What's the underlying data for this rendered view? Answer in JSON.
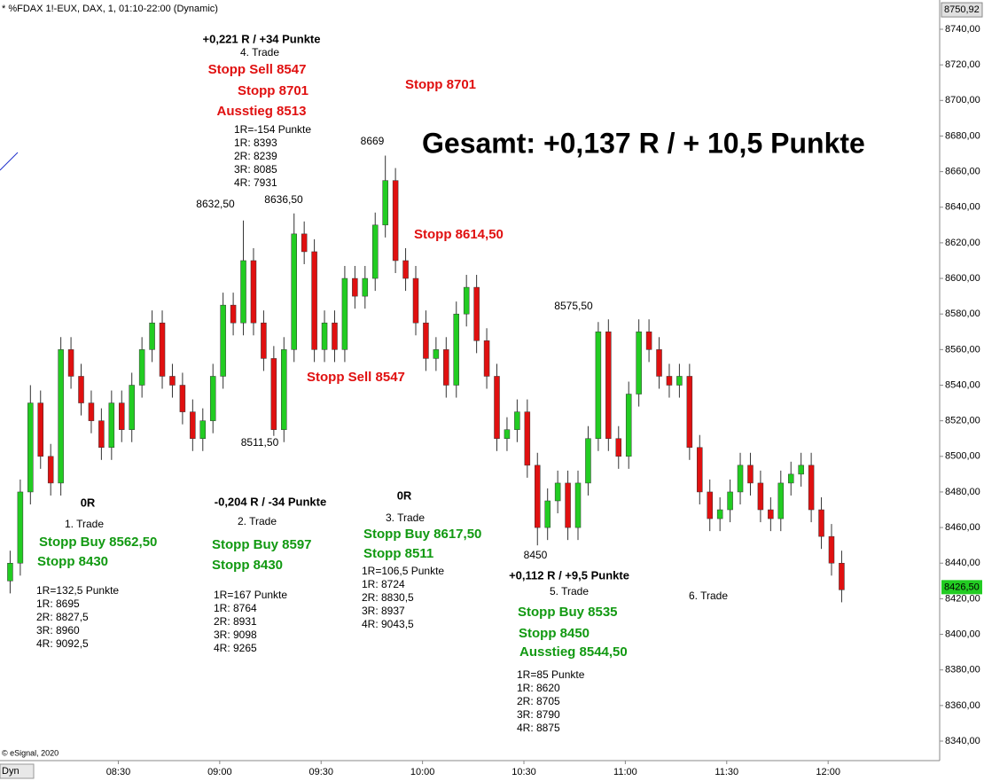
{
  "chart_data": {
    "type": "candlestick",
    "title": "* %FDAX 1!-EUX, DAX, 1, 01:10-22:00 (Dynamic)",
    "footer": "© eSignal, 2020",
    "mode_label": "Dyn",
    "up_color": "#22cc22",
    "down_color": "#e01010",
    "grid": false,
    "x": [
      478,
      481,
      484,
      487,
      490,
      493,
      496,
      499,
      502,
      505,
      508,
      511,
      514,
      517,
      520,
      523,
      526,
      529,
      532,
      535,
      538,
      541,
      544,
      547,
      550,
      553,
      556,
      559,
      562,
      565,
      568,
      571,
      574,
      577,
      580,
      583,
      586,
      589,
      592,
      595,
      598,
      601,
      604,
      607,
      610,
      613,
      616,
      619,
      622,
      625,
      628,
      631,
      634,
      637,
      640,
      643,
      646,
      649,
      652,
      655,
      658,
      661,
      664,
      667,
      670,
      673,
      676,
      679,
      682,
      685,
      688,
      691,
      694,
      697,
      700,
      703,
      706,
      709,
      712,
      715,
      718,
      721,
      724
    ],
    "open": [
      8430,
      8440,
      8480,
      8530,
      8500,
      8485,
      8560,
      8545,
      8530,
      8520,
      8505,
      8530,
      8515,
      8540,
      8560,
      8575,
      8545,
      8540,
      8525,
      8510,
      8520,
      8545,
      8585,
      8575,
      8610,
      8575,
      8555,
      8515,
      8560,
      8625,
      8615,
      8560,
      8575,
      8560,
      8600,
      8590,
      8600,
      8630,
      8655,
      8610,
      8600,
      8575,
      8555,
      8560,
      8540,
      8580,
      8595,
      8565,
      8545,
      8510,
      8515,
      8525,
      8495,
      8460,
      8475,
      8485,
      8460,
      8485,
      8510,
      8570,
      8510,
      8500,
      8535,
      8570,
      8560,
      8545,
      8540,
      8545,
      8505,
      8480,
      8465,
      8470,
      8480,
      8495,
      8485,
      8470,
      8465,
      8485,
      8490,
      8495,
      8470,
      8455,
      8440
    ],
    "high": [
      8447,
      8487,
      8540,
      8537,
      8507,
      8567,
      8567,
      8552,
      8537,
      8527,
      8537,
      8537,
      8547,
      8567,
      8582,
      8582,
      8552,
      8547,
      8532,
      8527,
      8552,
      8592,
      8592,
      8632.5,
      8617,
      8582,
      8562,
      8567,
      8636.5,
      8632,
      8622,
      8582,
      8582,
      8607,
      8607,
      8607,
      8637,
      8669,
      8662,
      8617,
      8607,
      8582,
      8567,
      8567,
      8587,
      8602,
      8602,
      8572,
      8552,
      8522,
      8532,
      8532,
      8502,
      8482,
      8492,
      8492,
      8492,
      8517,
      8575.5,
      8577,
      8517,
      8542,
      8577,
      8577,
      8567,
      8552,
      8552,
      8552,
      8512,
      8487,
      8477,
      8487,
      8502,
      8502,
      8492,
      8477,
      8492,
      8497,
      8502,
      8502,
      8477,
      8462,
      8447
    ],
    "low": [
      8423,
      8433,
      8473,
      8493,
      8478,
      8478,
      8538,
      8523,
      8513,
      8498,
      8498,
      8508,
      8508,
      8533,
      8553,
      8538,
      8533,
      8518,
      8503,
      8503,
      8513,
      8538,
      8568,
      8568,
      8568,
      8548,
      8511.5,
      8508,
      8553,
      8608,
      8553,
      8553,
      8553,
      8553,
      8583,
      8583,
      8593,
      8623,
      8603,
      8593,
      8568,
      8548,
      8548,
      8533,
      8533,
      8573,
      8558,
      8538,
      8503,
      8503,
      8508,
      8488,
      8450,
      8453,
      8468,
      8453,
      8453,
      8478,
      8503,
      8503,
      8493,
      8493,
      8528,
      8553,
      8538,
      8533,
      8533,
      8498,
      8473,
      8458,
      8458,
      8463,
      8473,
      8478,
      8463,
      8458,
      8458,
      8478,
      8483,
      8463,
      8448,
      8433,
      8418
    ],
    "close": [
      8440,
      8480,
      8530,
      8500,
      8485,
      8560,
      8545,
      8530,
      8520,
      8505,
      8530,
      8515,
      8540,
      8560,
      8575,
      8545,
      8540,
      8525,
      8510,
      8520,
      8545,
      8585,
      8575,
      8610,
      8575,
      8555,
      8515,
      8560,
      8625,
      8615,
      8560,
      8575,
      8560,
      8600,
      8590,
      8600,
      8630,
      8655,
      8610,
      8600,
      8575,
      8555,
      8560,
      8540,
      8580,
      8595,
      8565,
      8545,
      8510,
      8515,
      8525,
      8495,
      8460,
      8475,
      8485,
      8460,
      8485,
      8510,
      8570,
      8510,
      8500,
      8535,
      8570,
      8560,
      8545,
      8540,
      8545,
      8505,
      8480,
      8465,
      8470,
      8480,
      8495,
      8485,
      8470,
      8465,
      8485,
      8490,
      8495,
      8470,
      8455,
      8440,
      8425
    ],
    "xlim": [
      475,
      753
    ],
    "xticks": [
      {
        "value": 510,
        "label": "08:30"
      },
      {
        "value": 540,
        "label": "09:00"
      },
      {
        "value": 570,
        "label": "09:30"
      },
      {
        "value": 600,
        "label": "10:00"
      },
      {
        "value": 630,
        "label": "10:30"
      },
      {
        "value": 660,
        "label": "11:00"
      },
      {
        "value": 690,
        "label": "11:30"
      },
      {
        "value": 720,
        "label": "12:00"
      }
    ],
    "ylim": [
      8340,
      8740
    ],
    "yticks": [
      {
        "value": 8340,
        "label": "8340,00"
      },
      {
        "value": 8360,
        "label": "8360,00"
      },
      {
        "value": 8380,
        "label": "8380,00"
      },
      {
        "value": 8400,
        "label": "8400,00"
      },
      {
        "value": 8420,
        "label": "8420,00"
      },
      {
        "value": 8440,
        "label": "8440,00"
      },
      {
        "value": 8460,
        "label": "8460,00"
      },
      {
        "value": 8480,
        "label": "8480,00"
      },
      {
        "value": 8500,
        "label": "8500,00"
      },
      {
        "value": 8520,
        "label": "8520,00"
      },
      {
        "value": 8540,
        "label": "8540,00"
      },
      {
        "value": 8560,
        "label": "8560,00"
      },
      {
        "value": 8580,
        "label": "8580,00"
      },
      {
        "value": 8600,
        "label": "8600,00"
      },
      {
        "value": 8620,
        "label": "8620,00"
      },
      {
        "value": 8640,
        "label": "8640,00"
      },
      {
        "value": 8660,
        "label": "8660,00"
      },
      {
        "value": 8680,
        "label": "8680,00"
      },
      {
        "value": 8700,
        "label": "8700,00"
      },
      {
        "value": 8720,
        "label": "8720,00"
      },
      {
        "value": 8740,
        "label": "8740,00"
      }
    ],
    "top_price": {
      "value": 8750.92,
      "label": "8750,92"
    },
    "last_price": {
      "value": 8426.5,
      "label": "8426,50"
    },
    "annotations": [
      {
        "text": "+0,221 R / +34 Punkte",
        "color": "#000000"
      },
      {
        "text": "4. Trade",
        "color": "#000000"
      },
      {
        "text": "Stopp Sell 8547",
        "color": "#e01010"
      },
      {
        "text": "Stopp 8701",
        "color": "#e01010"
      },
      {
        "text": "Ausstieg 8513",
        "color": "#e01010"
      },
      {
        "text": "1R=-154 Punkte",
        "color": "#000000"
      },
      {
        "text": "1R: 8393",
        "color": "#000000"
      },
      {
        "text": "2R: 8239",
        "color": "#000000"
      },
      {
        "text": "3R: 8085",
        "color": "#000000"
      },
      {
        "text": "4R: 7931",
        "color": "#000000"
      },
      {
        "text": "Stopp 8701",
        "color": "#e01010"
      },
      {
        "text": "Gesamt: +0,137 R / + 10,5 Punkte",
        "color": "#000000"
      },
      {
        "text": "8669",
        "color": "#000000"
      },
      {
        "text": "8632,50",
        "color": "#000000"
      },
      {
        "text": "8636,50",
        "color": "#000000"
      },
      {
        "text": "Stopp 8614,50",
        "color": "#e01010"
      },
      {
        "text": "8575,50",
        "color": "#000000"
      },
      {
        "text": "Stopp Sell 8547",
        "color": "#e01010"
      },
      {
        "text": "8511,50",
        "color": "#000000"
      },
      {
        "text": "0R",
        "color": "#000000"
      },
      {
        "text": "1. Trade",
        "color": "#000000"
      },
      {
        "text": "Stopp Buy 8562,50",
        "color": "#119911"
      },
      {
        "text": "Stopp 8430",
        "color": "#119911"
      },
      {
        "text": "1R=132,5 Punkte",
        "color": "#000000"
      },
      {
        "text": "1R: 8695",
        "color": "#000000"
      },
      {
        "text": "2R: 8827,5",
        "color": "#000000"
      },
      {
        "text": "3R: 8960",
        "color": "#000000"
      },
      {
        "text": "4R: 9092,5",
        "color": "#000000"
      },
      {
        "text": "-0,204 R / -34 Punkte",
        "color": "#000000"
      },
      {
        "text": "2. Trade",
        "color": "#000000"
      },
      {
        "text": "Stopp Buy 8597",
        "color": "#119911"
      },
      {
        "text": "Stopp 8430",
        "color": "#119911"
      },
      {
        "text": "1R=167 Punkte",
        "color": "#000000"
      },
      {
        "text": "1R: 8764",
        "color": "#000000"
      },
      {
        "text": "2R: 8931",
        "color": "#000000"
      },
      {
        "text": "3R: 9098",
        "color": "#000000"
      },
      {
        "text": "4R: 9265",
        "color": "#000000"
      },
      {
        "text": "0R",
        "color": "#000000"
      },
      {
        "text": "3. Trade",
        "color": "#000000"
      },
      {
        "text": "Stopp Buy 8617,50",
        "color": "#119911"
      },
      {
        "text": "Stopp 8511",
        "color": "#119911"
      },
      {
        "text": "1R=106,5 Punkte",
        "color": "#000000"
      },
      {
        "text": "1R: 8724",
        "color": "#000000"
      },
      {
        "text": "2R: 8830,5",
        "color": "#000000"
      },
      {
        "text": "3R: 8937",
        "color": "#000000"
      },
      {
        "text": "4R: 9043,5",
        "color": "#000000"
      },
      {
        "text": "8450",
        "color": "#000000"
      },
      {
        "text": "+0,112 R / +9,5 Punkte",
        "color": "#000000"
      },
      {
        "text": "5. Trade",
        "color": "#000000"
      },
      {
        "text": "Stopp Buy 8535",
        "color": "#119911"
      },
      {
        "text": "Stopp 8450",
        "color": "#119911"
      },
      {
        "text": "Ausstieg 8544,50",
        "color": "#119911"
      },
      {
        "text": "1R=85 Punkte",
        "color": "#000000"
      },
      {
        "text": "1R: 8620",
        "color": "#000000"
      },
      {
        "text": "2R: 8705",
        "color": "#000000"
      },
      {
        "text": "3R: 8790",
        "color": "#000000"
      },
      {
        "text": "4R: 8875",
        "color": "#000000"
      },
      {
        "text": "6. Trade",
        "color": "#000000"
      }
    ]
  }
}
